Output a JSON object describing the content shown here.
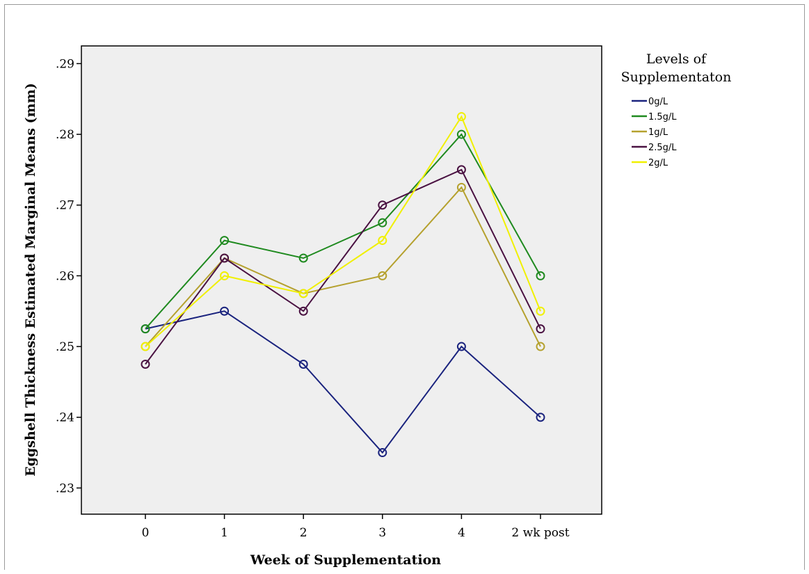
{
  "chart_data": {
    "type": "line",
    "xlabel": "Week of Supplementation",
    "ylabel": "Eggshell Thickness Estimated Marginal Means (mm)",
    "categories": [
      "0",
      "1",
      "2",
      "3",
      "4",
      "2 wk post"
    ],
    "ylim": [
      0.2263,
      0.2925
    ],
    "yticks": [
      0.23,
      0.24,
      0.25,
      0.26,
      0.27,
      0.28,
      0.29
    ],
    "ytick_labels": [
      ".23",
      ".24",
      ".25",
      ".26",
      ".27",
      ".28",
      ".29"
    ],
    "grid": false,
    "legend": {
      "title_lines": [
        "Levels of",
        "Supplementaton"
      ],
      "placement": "right"
    },
    "series": [
      {
        "name": "0g/L",
        "color": "#1a237e",
        "values": [
          0.2525,
          0.255,
          0.2475,
          0.235,
          0.25,
          0.24
        ]
      },
      {
        "name": "1.5g/L",
        "color": "#1f8a1f",
        "values": [
          0.2525,
          0.265,
          0.2625,
          0.2675,
          0.28,
          0.26
        ]
      },
      {
        "name": "1g/L",
        "color": "#b5a12e",
        "values": [
          0.25,
          0.2625,
          0.2575,
          0.26,
          0.2725,
          0.25
        ]
      },
      {
        "name": "2.5g/L",
        "color": "#4a1242",
        "values": [
          0.2475,
          0.2625,
          0.255,
          0.27,
          0.275,
          0.2525
        ]
      },
      {
        "name": "2g/L",
        "color": "#f0f000",
        "values": [
          0.25,
          0.26,
          0.2575,
          0.265,
          0.2825,
          0.255
        ]
      }
    ],
    "plot_background": "#efefef"
  }
}
